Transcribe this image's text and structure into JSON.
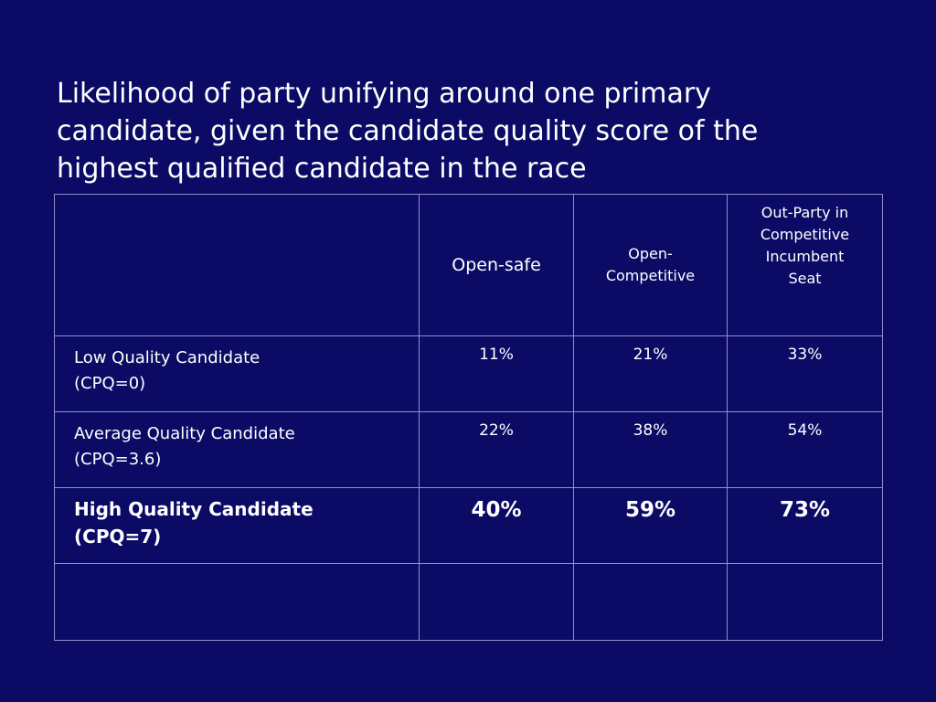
{
  "title": {
    "line1": "Likelihood of party unifying around one primary",
    "line2": "candidate, given the candidate quality score of the",
    "line3": "highest qualified candidate in the race"
  },
  "table": {
    "headers": {
      "col1": "Open-safe",
      "col2_line1": "Open-",
      "col2_line2": "Competitive",
      "col3_line1": "Out-Party in",
      "col3_line2": "Competitive",
      "col3_line3": "Incumbent",
      "col3_line4": "Seat"
    },
    "rows": [
      {
        "label_line1": "Low Quality Candidate",
        "label_line2": "(CPQ=0)",
        "values": [
          "11%",
          "21%",
          "33%"
        ]
      },
      {
        "label_line1": "Average Quality Candidate",
        "label_line2": "(CPQ=3.6)",
        "values": [
          "22%",
          "38%",
          "54%"
        ]
      },
      {
        "label_line1": "High Quality Candidate",
        "label_line2": "(CPQ=7)",
        "values": [
          "40%",
          "59%",
          "73%"
        ]
      }
    ]
  }
}
